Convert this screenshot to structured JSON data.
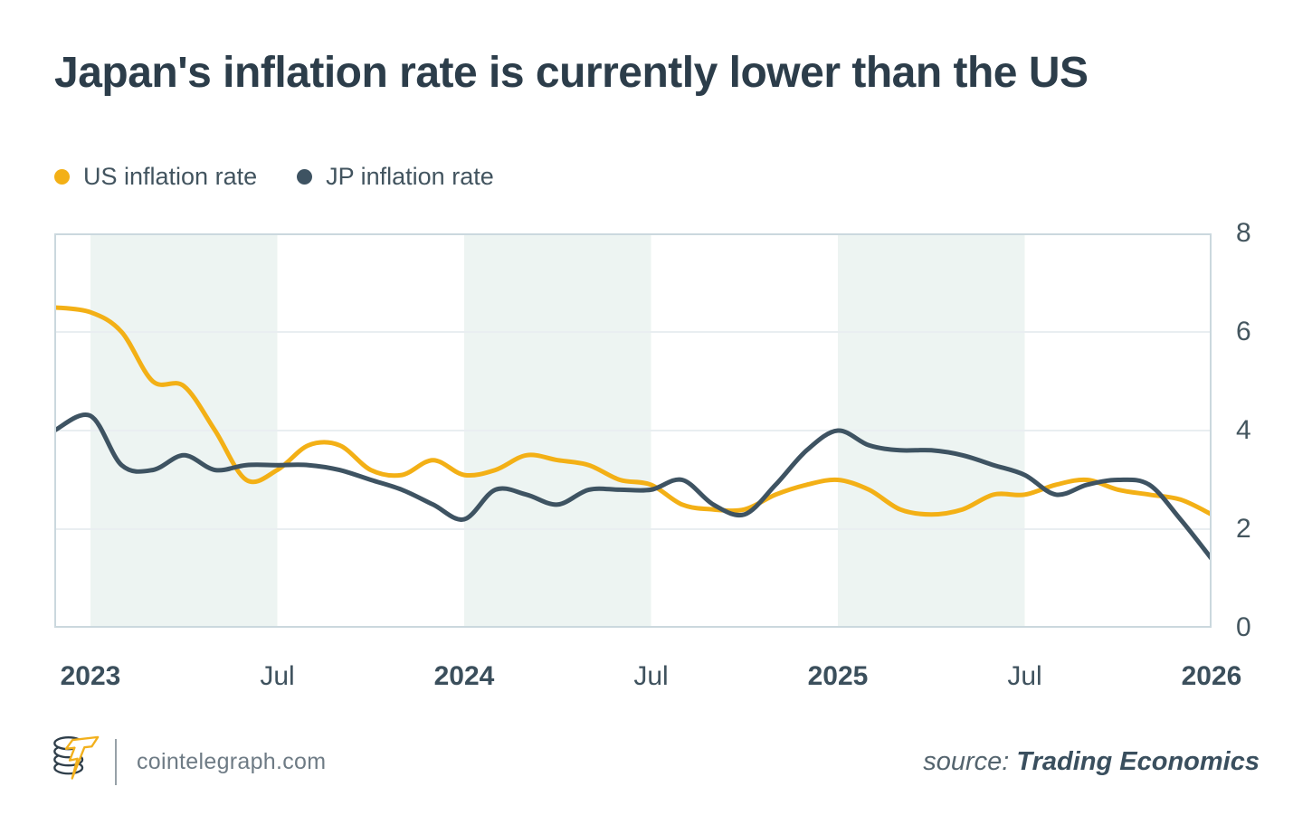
{
  "title": "Japan's inflation rate is currently lower than the US",
  "legend": [
    {
      "label": "US inflation rate",
      "color": "#f3b016"
    },
    {
      "label": "JP inflation rate",
      "color": "#3e5362"
    }
  ],
  "chart_data": {
    "type": "line",
    "x": [
      "2022-12",
      "2023-01",
      "2023-02",
      "2023-03",
      "2023-04",
      "2023-05",
      "2023-06",
      "2023-07",
      "2023-08",
      "2023-09",
      "2023-10",
      "2023-11",
      "2023-12",
      "2024-01",
      "2024-02",
      "2024-03",
      "2024-04",
      "2024-05",
      "2024-06",
      "2024-07",
      "2024-08",
      "2024-09",
      "2024-10",
      "2024-11",
      "2024-12",
      "2025-01",
      "2025-02",
      "2025-03",
      "2025-04",
      "2025-05",
      "2025-06",
      "2025-07",
      "2025-08",
      "2025-09",
      "2025-10",
      "2025-11",
      "2025-12",
      "2026-01"
    ],
    "series": [
      {
        "name": "US inflation rate",
        "color": "#f3b016",
        "values": [
          6.5,
          6.4,
          6.0,
          5.0,
          4.9,
          4.0,
          3.0,
          3.2,
          3.7,
          3.7,
          3.2,
          3.1,
          3.4,
          3.1,
          3.2,
          3.5,
          3.4,
          3.3,
          3.0,
          2.9,
          2.5,
          2.4,
          2.4,
          2.7,
          2.9,
          3.0,
          2.8,
          2.4,
          2.3,
          2.4,
          2.7,
          2.7,
          2.9,
          3.0,
          2.8,
          2.7,
          2.6,
          2.3
        ]
      },
      {
        "name": "JP inflation rate",
        "color": "#3e5362",
        "values": [
          4.0,
          4.3,
          3.3,
          3.2,
          3.5,
          3.2,
          3.3,
          3.3,
          3.3,
          3.2,
          3.0,
          2.8,
          2.5,
          2.2,
          2.8,
          2.7,
          2.5,
          2.8,
          2.8,
          2.8,
          3.0,
          2.5,
          2.3,
          2.9,
          3.6,
          4.0,
          3.7,
          3.6,
          3.6,
          3.5,
          3.3,
          3.1,
          2.7,
          2.9,
          3.0,
          2.9,
          2.2,
          1.4
        ]
      }
    ],
    "ylim": [
      0,
      8
    ],
    "y_ticks": [
      8,
      6,
      4,
      2,
      0
    ],
    "x_ticks": [
      {
        "index": 1,
        "label": "2023",
        "bold": true
      },
      {
        "index": 7,
        "label": "Jul",
        "bold": false
      },
      {
        "index": 13,
        "label": "2024",
        "bold": true
      },
      {
        "index": 19,
        "label": "Jul",
        "bold": false
      },
      {
        "index": 25,
        "label": "2025",
        "bold": true
      },
      {
        "index": 31,
        "label": "Jul",
        "bold": false
      },
      {
        "index": 37,
        "label": "2026",
        "bold": true
      }
    ],
    "shaded_bands": [
      {
        "from_index": 1,
        "to_index": 7
      },
      {
        "from_index": 13,
        "to_index": 19
      },
      {
        "from_index": 25,
        "to_index": 31
      }
    ],
    "grid": true,
    "legend_position": "top-left",
    "band_color": "#edf4f2",
    "grid_color": "#e9eef1",
    "border_color": "#cbd8de",
    "xlabel": "",
    "ylabel": ""
  },
  "footer": {
    "site": "cointelegraph.com",
    "source_label": "source:",
    "source_name": "Trading Economics",
    "logo": "cointelegraph-coin-lightning-logo"
  }
}
